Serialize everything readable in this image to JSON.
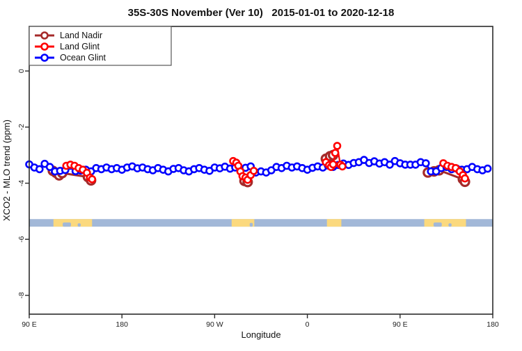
{
  "legend": {
    "items": [
      {
        "label": "Land Nadir",
        "color": "#A52A2A"
      },
      {
        "label": "Land Glint",
        "color": "#FF0000"
      },
      {
        "label": "Ocean Glint",
        "color": "#0000FF"
      }
    ]
  },
  "chart_data": {
    "type": "scatter",
    "title": "35S-30S November (Ver 10)   2015-01-01 to 2020-12-18",
    "xlabel": "Longitude",
    "ylabel": "XCO2 - MLO trend (ppm)",
    "xlim": [
      90,
      540
    ],
    "ylim": [
      -8.67,
      1.59
    ],
    "grid": false,
    "legend_position": "topleft",
    "x_ticks": [
      {
        "v": 90,
        "label": "90 E"
      },
      {
        "v": 180,
        "label": "180"
      },
      {
        "v": 270,
        "label": "90 W"
      },
      {
        "v": 360,
        "label": "0"
      },
      {
        "v": 450,
        "label": "90 E"
      },
      {
        "v": 540,
        "label": "180"
      }
    ],
    "y_ticks": [
      {
        "v": 0,
        "label": "0"
      },
      {
        "v": -2,
        "label": "-2"
      },
      {
        "v": -4,
        "label": "-4"
      },
      {
        "v": -6,
        "label": "-6"
      },
      {
        "v": -8,
        "label": "-8"
      }
    ],
    "series": [
      {
        "name": "Land Nadir",
        "color": "#A52A2A",
        "marker_radius": 6,
        "marker_stroke": 3.2,
        "line_width": 3,
        "segments": [
          [
            [
              113,
              -3.56
            ],
            [
              116,
              -3.63
            ],
            [
              119,
              -3.72
            ],
            [
              122,
              -3.64
            ],
            [
              147,
              -3.78
            ],
            [
              150,
              -3.9
            ]
          ],
          [
            [
              299,
              -3.92
            ],
            [
              302,
              -3.96
            ]
          ],
          [
            [
              378,
              -3.13
            ],
            [
              382,
              -3.04
            ],
            [
              385,
              -3.0
            ]
          ],
          [
            [
              477,
              -3.62
            ],
            [
              483,
              -3.58
            ],
            [
              488,
              -3.54
            ],
            [
              511,
              -3.86
            ],
            [
              513,
              -3.95
            ]
          ]
        ]
      },
      {
        "name": "Land Glint",
        "color": "#FF0000",
        "marker_radius": 4.5,
        "marker_stroke": 2.6,
        "line_width": 2.2,
        "segments": [
          [
            [
              126,
              -3.38
            ],
            [
              130,
              -3.34
            ],
            [
              134,
              -3.38
            ],
            [
              138,
              -3.46
            ],
            [
              142,
              -3.52
            ],
            [
              146,
              -3.63
            ],
            [
              149,
              -3.8
            ],
            [
              151,
              -3.86
            ]
          ],
          [
            [
              288,
              -3.21
            ],
            [
              291,
              -3.27
            ],
            [
              293,
              -3.38
            ],
            [
              295,
              -3.58
            ],
            [
              297,
              -3.75
            ],
            [
              300,
              -3.8
            ],
            [
              302,
              -3.88
            ],
            [
              305,
              -3.71
            ],
            [
              308,
              -3.56
            ]
          ],
          [
            [
              378,
              -3.25
            ],
            [
              381,
              -3.36
            ],
            [
              383,
              -3.42
            ],
            [
              385,
              -3.33
            ],
            [
              387,
              -2.92
            ],
            [
              389,
              -2.67
            ],
            [
              392,
              -3.34
            ],
            [
              394,
              -3.4
            ]
          ],
          [
            [
              492,
              -3.29
            ],
            [
              496,
              -3.38
            ],
            [
              500,
              -3.42
            ],
            [
              504,
              -3.46
            ],
            [
              508,
              -3.58
            ],
            [
              511,
              -3.71
            ],
            [
              513,
              -3.83
            ]
          ]
        ]
      },
      {
        "name": "Ocean Glint",
        "color": "#0000FF",
        "marker_radius": 4.5,
        "marker_stroke": 2.6,
        "line_width": 2.2,
        "segments": [
          [
            [
              90,
              -3.33
            ],
            [
              95,
              -3.44
            ],
            [
              100,
              -3.5
            ],
            [
              105,
              -3.31
            ],
            [
              110,
              -3.42
            ],
            [
              115,
              -3.58
            ],
            [
              120,
              -3.56
            ],
            [
              125,
              -3.53
            ],
            [
              130,
              -3.38
            ],
            [
              135,
              -3.57
            ],
            [
              140,
              -3.55
            ],
            [
              145,
              -3.52
            ],
            [
              150,
              -3.58
            ],
            [
              155,
              -3.46
            ],
            [
              160,
              -3.5
            ],
            [
              165,
              -3.44
            ],
            [
              170,
              -3.5
            ],
            [
              175,
              -3.46
            ],
            [
              180,
              -3.52
            ],
            [
              185,
              -3.44
            ],
            [
              190,
              -3.4
            ],
            [
              195,
              -3.47
            ],
            [
              200,
              -3.44
            ],
            [
              205,
              -3.5
            ],
            [
              210,
              -3.54
            ],
            [
              215,
              -3.46
            ],
            [
              220,
              -3.52
            ],
            [
              225,
              -3.58
            ],
            [
              230,
              -3.49
            ],
            [
              235,
              -3.46
            ],
            [
              240,
              -3.54
            ],
            [
              245,
              -3.58
            ],
            [
              250,
              -3.5
            ],
            [
              255,
              -3.46
            ],
            [
              260,
              -3.52
            ],
            [
              265,
              -3.56
            ],
            [
              270,
              -3.44
            ],
            [
              275,
              -3.47
            ],
            [
              280,
              -3.41
            ],
            [
              285,
              -3.48
            ],
            [
              290,
              -3.44
            ],
            [
              295,
              -3.52
            ],
            [
              300,
              -3.45
            ],
            [
              305,
              -3.4
            ],
            [
              310,
              -3.62
            ],
            [
              315,
              -3.58
            ],
            [
              320,
              -3.62
            ],
            [
              325,
              -3.54
            ],
            [
              330,
              -3.42
            ],
            [
              335,
              -3.46
            ],
            [
              340,
              -3.38
            ],
            [
              345,
              -3.44
            ],
            [
              350,
              -3.4
            ],
            [
              355,
              -3.46
            ],
            [
              360,
              -3.52
            ],
            [
              365,
              -3.45
            ],
            [
              370,
              -3.4
            ],
            [
              375,
              -3.44
            ],
            [
              380,
              -3.37
            ],
            [
              385,
              -3.42
            ],
            [
              390,
              -3.35
            ],
            [
              395,
              -3.3
            ],
            [
              400,
              -3.35
            ],
            [
              405,
              -3.28
            ],
            [
              410,
              -3.25
            ],
            [
              415,
              -3.17
            ],
            [
              420,
              -3.28
            ],
            [
              425,
              -3.22
            ],
            [
              430,
              -3.3
            ],
            [
              435,
              -3.25
            ],
            [
              440,
              -3.34
            ],
            [
              445,
              -3.21
            ],
            [
              450,
              -3.29
            ],
            [
              455,
              -3.34
            ],
            [
              460,
              -3.34
            ],
            [
              465,
              -3.34
            ],
            [
              470,
              -3.25
            ],
            [
              475,
              -3.29
            ],
            [
              480,
              -3.58
            ],
            [
              485,
              -3.58
            ],
            [
              490,
              -3.46
            ],
            [
              495,
              -3.42
            ],
            [
              500,
              -3.5
            ],
            [
              505,
              -3.48
            ],
            [
              510,
              -3.52
            ],
            [
              515,
              -3.5
            ],
            [
              520,
              -3.42
            ],
            [
              525,
              -3.5
            ],
            [
              530,
              -3.54
            ],
            [
              535,
              -3.48
            ]
          ]
        ]
      }
    ],
    "map_strip": {
      "top": -5.28,
      "bottom": -5.55,
      "ocean_color": "#A2B8D8",
      "land_color": "#FBD97E",
      "land_segments": [
        [
          113.5,
          151
        ],
        [
          286.5,
          308.5
        ],
        [
          379,
          393
        ],
        [
          473.5,
          514
        ]
      ],
      "coast_notches": [
        [
          122.5,
          130.5,
          0.55
        ],
        [
          137,
          140,
          0.45
        ],
        [
          304,
          307,
          0.5
        ],
        [
          482.5,
          490.5,
          0.55
        ],
        [
          497,
          500,
          0.45
        ]
      ]
    }
  }
}
